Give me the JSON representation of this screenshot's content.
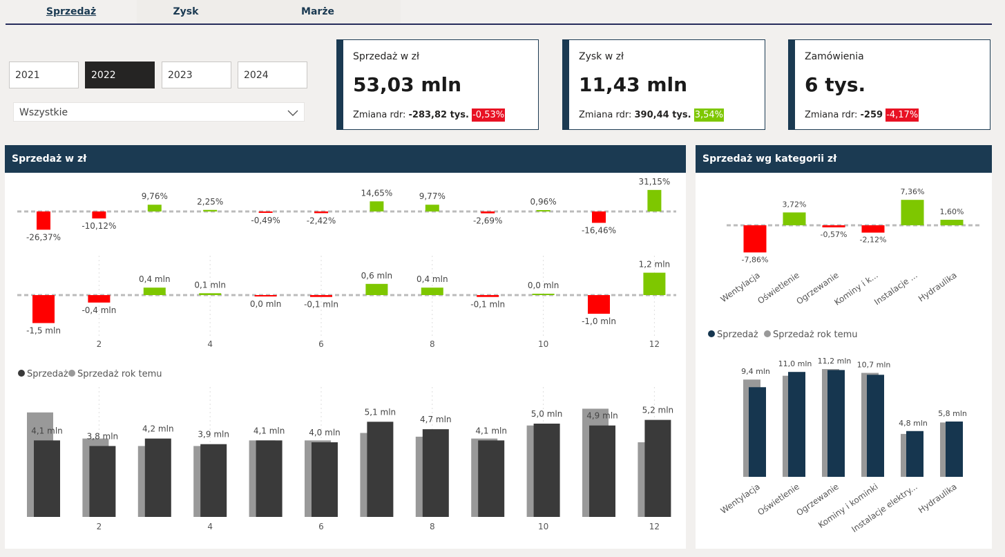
{
  "tabs": [
    {
      "label": "Sprzedaż",
      "active": true
    },
    {
      "label": "Zysk",
      "active": false
    },
    {
      "label": "Marże",
      "active": false
    }
  ],
  "years": [
    {
      "label": "2021",
      "selected": false
    },
    {
      "label": "2022",
      "selected": true
    },
    {
      "label": "2023",
      "selected": false
    },
    {
      "label": "2024",
      "selected": false
    }
  ],
  "category_filter": {
    "value": "Wszystkie",
    "icon": "chevron-down-icon"
  },
  "kpis": [
    {
      "title": "Sprzedaż w zł",
      "value": "53,03 mln",
      "change_label": "Zmiana rdr:",
      "change_value": "-283,82 tys.",
      "change_pct": "-0,53%",
      "direction": "down"
    },
    {
      "title": "Zysk w zł",
      "value": "11,43 mln",
      "change_label": "Zmiana rdr:",
      "change_value": "390,44 tys.",
      "change_pct": "3,54%",
      "direction": "up"
    },
    {
      "title": "Zamówienia",
      "value": "6 tys.",
      "change_label": "Zmiana rdr:",
      "change_value": "-259",
      "change_pct": "-4,17%",
      "direction": "down"
    }
  ],
  "colors": {
    "header": "#1b3a52",
    "positive": "#7ec700",
    "negative": "#ff0000",
    "current_month": "#3a3a3a",
    "prior": "#999999",
    "current_category": "#16364f"
  },
  "monthly_panel": {
    "title": "Sprzedaż w zł",
    "x_ticks": [
      "2",
      "4",
      "6",
      "8",
      "10",
      "12"
    ],
    "legend": [
      {
        "label": "Sprzedaż",
        "color": "#3a3a3a"
      },
      {
        "label": "Sprzedaż rok temu",
        "color": "#999999"
      }
    ]
  },
  "category_panel": {
    "title": "Sprzedaż wg kategorii zł",
    "legend": [
      {
        "label": "Sprzedaż",
        "color": "#16364f"
      },
      {
        "label": "Sprzedaż rok temu",
        "color": "#999999"
      }
    ]
  },
  "chart_data": [
    {
      "type": "bar",
      "subtype": "variance_pct",
      "x": [
        1,
        2,
        3,
        4,
        5,
        6,
        7,
        8,
        9,
        10,
        11,
        12
      ],
      "values": [
        -26.37,
        -10.12,
        9.76,
        2.25,
        -0.49,
        -2.42,
        14.65,
        9.77,
        -2.69,
        0.96,
        -16.46,
        31.15
      ],
      "labels": [
        "-26,37%",
        "-10,12%",
        "9,76%",
        "2,25%",
        "-0,49%",
        "-2,42%",
        "14,65%",
        "9,77%",
        "-2,69%",
        "0,96%",
        "-16,46%",
        "31,15%"
      ]
    },
    {
      "type": "bar",
      "subtype": "variance_abs",
      "x": [
        1,
        2,
        3,
        4,
        5,
        6,
        7,
        8,
        9,
        10,
        11,
        12
      ],
      "values": [
        -1.5,
        -0.4,
        0.4,
        0.1,
        -0.02,
        -0.1,
        0.6,
        0.4,
        -0.1,
        0.04,
        -1.0,
        1.2
      ],
      "labels": [
        "-1,5 mln",
        "-0,4 mln",
        "0,4 mln",
        "0,1 mln",
        "0,0 mln",
        "-0,1 mln",
        "0,6 mln",
        "0,4 mln",
        "-0,1 mln",
        "0,0 mln",
        "-1,0 mln",
        "1,2 mln"
      ],
      "x_ticks": [
        "2",
        "4",
        "6",
        "8",
        "10",
        "12"
      ]
    },
    {
      "type": "bar",
      "subtype": "grouped",
      "x": [
        1,
        2,
        3,
        4,
        5,
        6,
        7,
        8,
        9,
        10,
        11,
        12
      ],
      "x_ticks": [
        "2",
        "4",
        "6",
        "8",
        "10",
        "12"
      ],
      "series": [
        {
          "name": "Sprzedaż",
          "values": [
            4.1,
            3.8,
            4.2,
            3.9,
            4.1,
            4.0,
            5.1,
            4.7,
            4.1,
            5.0,
            4.9,
            5.2
          ]
        },
        {
          "name": "Sprzedaż rok temu",
          "values": [
            5.6,
            4.2,
            3.8,
            3.8,
            4.1,
            4.1,
            4.5,
            4.3,
            4.2,
            4.9,
            5.8,
            4.0
          ]
        }
      ],
      "labels": [
        "4,1 mln",
        "3,8 mln",
        "4,2 mln",
        "3,9 mln",
        "4,1 mln",
        "4,0 mln",
        "5,1 mln",
        "4,7 mln",
        "4,1 mln",
        "5,0 mln",
        "4,9 mln",
        "5,2 mln"
      ]
    },
    {
      "type": "bar",
      "subtype": "variance_pct",
      "categories": [
        "Wentylacja",
        "Oświetlenie",
        "Ogrzewanie",
        "Kominy i k...",
        "Instalacje ...",
        "Hydraulika"
      ],
      "values": [
        -7.86,
        3.72,
        -0.57,
        -2.12,
        7.36,
        1.6
      ],
      "labels": [
        "-7,86%",
        "3,72%",
        "-0,57%",
        "-2,12%",
        "7,36%",
        "1,60%"
      ]
    },
    {
      "type": "bar",
      "subtype": "grouped",
      "categories": [
        "Wentylacja",
        "Oświetlenie",
        "Ogrzewanie",
        "Kominy i kominki",
        "Instalacje elektry...",
        "Hydraulika"
      ],
      "series": [
        {
          "name": "Sprzedaż",
          "values": [
            9.4,
            11.0,
            11.2,
            10.7,
            4.8,
            5.8
          ]
        },
        {
          "name": "Sprzedaż rok temu",
          "values": [
            10.2,
            10.6,
            11.3,
            10.9,
            4.5,
            5.7
          ]
        }
      ],
      "labels": [
        "9,4 mln",
        "11,0 mln",
        "11,2 mln",
        "10,7 mln",
        "4,8 mln",
        "5,8 mln"
      ]
    }
  ]
}
